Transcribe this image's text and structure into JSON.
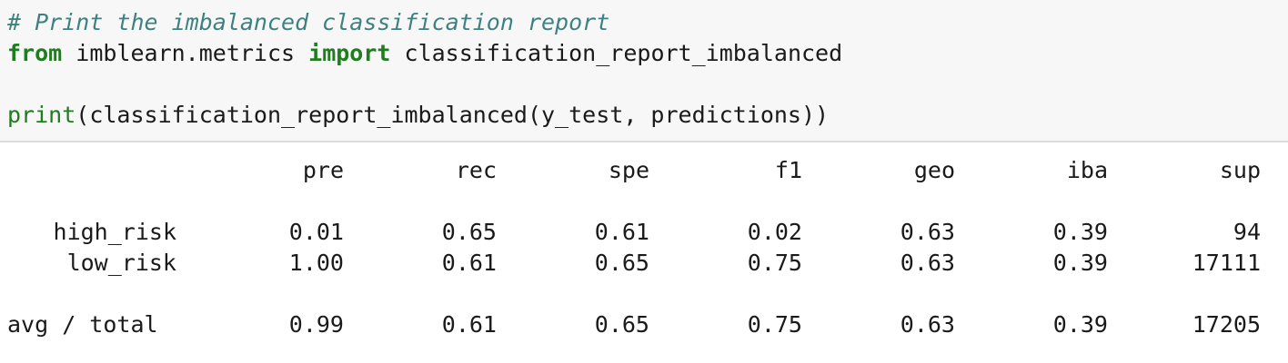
{
  "code": {
    "comment": "# Print the imbalanced classification report",
    "line2": {
      "kw_from": "from",
      "module": " imblearn.metrics ",
      "kw_import": "import",
      "name": " classification_report_imbalanced"
    },
    "line4": {
      "builtin": "print",
      "rest": "(classification_report_imbalanced(y_test, predictions))"
    }
  },
  "report": {
    "headers": [
      "pre",
      "rec",
      "spe",
      "f1",
      "geo",
      "iba",
      "sup"
    ],
    "rows": [
      {
        "label": "high_risk",
        "values": [
          "0.01",
          "0.65",
          "0.61",
          "0.02",
          "0.63",
          "0.39",
          "94"
        ]
      },
      {
        "label": "low_risk",
        "values": [
          "1.00",
          "0.61",
          "0.65",
          "0.75",
          "0.63",
          "0.39",
          "17111"
        ]
      }
    ],
    "total": {
      "label": "avg / total",
      "values": [
        "0.99",
        "0.61",
        "0.65",
        "0.75",
        "0.63",
        "0.39",
        "17205"
      ]
    }
  }
}
